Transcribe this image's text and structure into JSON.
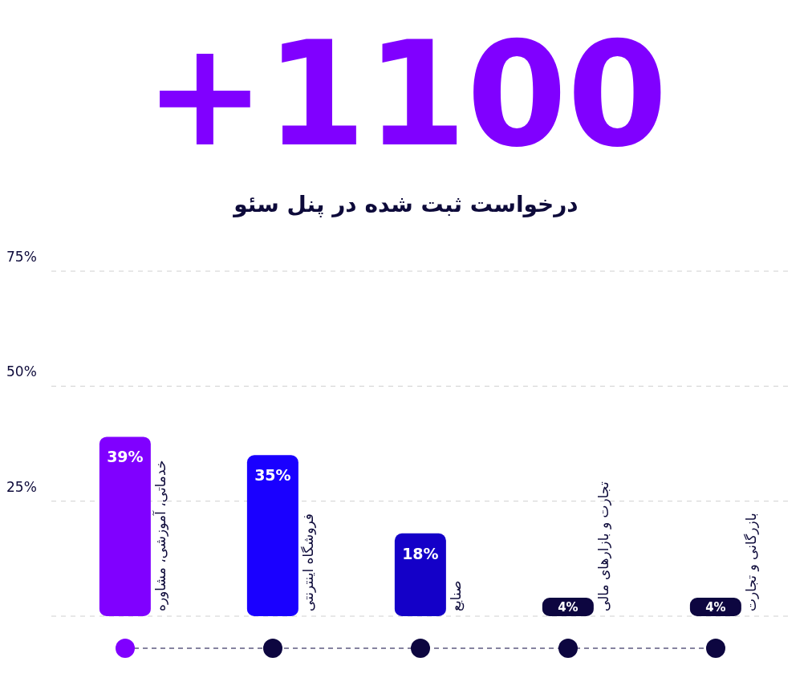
{
  "chart_data": {
    "type": "bar",
    "title": "+1100",
    "subtitle": "درخواست ثبت شده در پنل سئو",
    "categories": [
      "خدماتی، آموزشی، مشاوره",
      "فروشگاه اینترنتی",
      "صنایع",
      "تجارت و بازارهای مالی",
      "بازرگانی و تجارت"
    ],
    "values": [
      39,
      35,
      18,
      4,
      4
    ],
    "colors": [
      "#8000ff",
      "#1a00ff",
      "#1400c8",
      "#0d0640",
      "#0d0640"
    ],
    "value_labels": [
      "39%",
      "35%",
      "18%",
      "4%",
      "4%"
    ],
    "ylim": [
      0,
      75
    ],
    "yticks": [
      {
        "value": 25,
        "label": "25%"
      },
      {
        "value": 50,
        "label": "50%"
      },
      {
        "value": 75,
        "label": "75%"
      }
    ],
    "grid": "y",
    "legend": false
  }
}
